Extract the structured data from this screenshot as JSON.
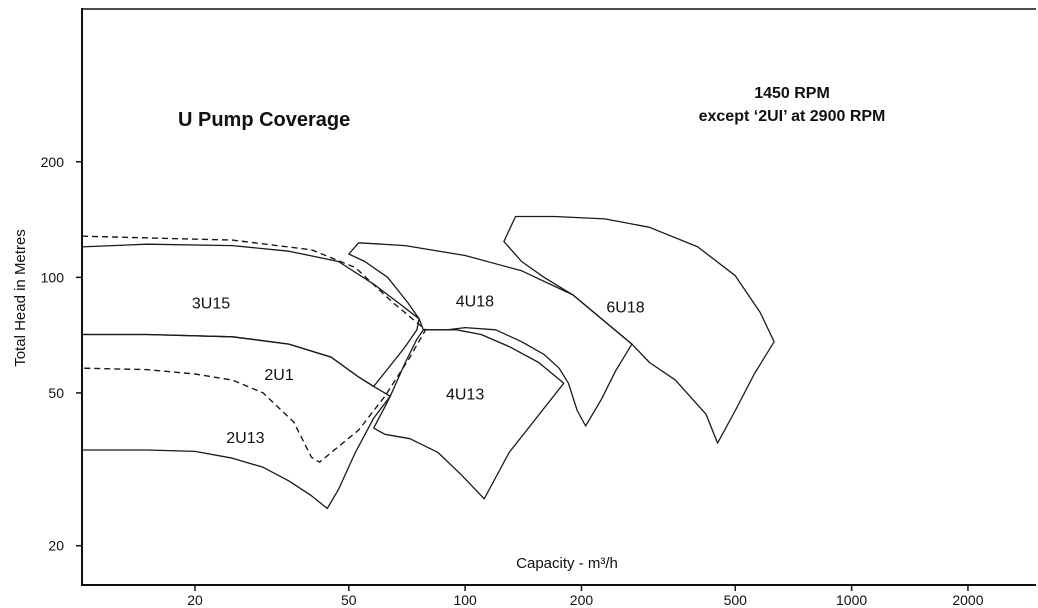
{
  "chart_data": {
    "type": "area",
    "title": "U Pump Coverage",
    "note_line1": "1450 RPM",
    "note_line2": "except ‘2UI’ at 2900 RPM",
    "xlabel": "Capacity - m³/h",
    "ylabel": "Total Head in Metres",
    "x_scale": "log",
    "y_scale": "log",
    "xlim": [
      10.2,
      3000
    ],
    "ylim": [
      15.8,
      500
    ],
    "x_ticks": [
      20,
      50,
      100,
      200,
      500,
      1000,
      2000
    ],
    "x_tick_labels": [
      "20",
      "50",
      "100",
      "200",
      "500",
      "1000",
      "2000"
    ],
    "y_ticks": [
      20,
      50,
      100,
      200
    ],
    "y_tick_labels": [
      "20",
      "50",
      "100",
      "200"
    ],
    "grid": false,
    "series": [
      {
        "name": "3U15",
        "style": "solid",
        "label_at": [
          22,
          83
        ],
        "outline": [
          [
            10.2,
            120
          ],
          [
            15,
            122
          ],
          [
            25,
            121
          ],
          [
            35,
            117
          ],
          [
            47,
            110
          ],
          [
            58,
            96
          ],
          [
            68,
            85
          ],
          [
            76,
            78
          ],
          [
            75,
            73
          ],
          [
            70,
            66
          ],
          [
            65,
            60
          ],
          [
            58,
            52
          ],
          [
            53,
            55
          ],
          [
            45,
            62
          ],
          [
            35,
            67
          ],
          [
            25,
            70
          ],
          [
            15,
            71
          ],
          [
            10.2,
            71
          ]
        ]
      },
      {
        "name": "2U13",
        "style": "solid",
        "label_at": [
          27,
          37
        ],
        "outline": [
          [
            10.2,
            71
          ],
          [
            15,
            71
          ],
          [
            25,
            70
          ],
          [
            35,
            67
          ],
          [
            45,
            62
          ],
          [
            53,
            55
          ],
          [
            58,
            52
          ],
          [
            64,
            49
          ],
          [
            58,
            43
          ],
          [
            52,
            35
          ],
          [
            47,
            28
          ],
          [
            44,
            25
          ],
          [
            40,
            27
          ],
          [
            35,
            29.5
          ],
          [
            30,
            32
          ],
          [
            25,
            33.8
          ],
          [
            20,
            35.2
          ],
          [
            15,
            35.5
          ],
          [
            10.2,
            35.5
          ]
        ]
      },
      {
        "name": "2U1",
        "style": "dashed",
        "label_at": [
          33,
          54
        ],
        "outline": [
          [
            10.2,
            128
          ],
          [
            25,
            125
          ],
          [
            40,
            118
          ],
          [
            52,
            106
          ],
          [
            65,
            86
          ],
          [
            79,
            73
          ],
          [
            72,
            62
          ],
          [
            62,
            49
          ],
          [
            53,
            40
          ],
          [
            42,
            33
          ],
          [
            40,
            34
          ],
          [
            36,
            42
          ],
          [
            30,
            50
          ],
          [
            25,
            54
          ],
          [
            20,
            56
          ],
          [
            15,
            57.5
          ],
          [
            10.2,
            58
          ]
        ]
      },
      {
        "name": "4U13",
        "style": "solid",
        "label_at": [
          100,
          48
        ],
        "outline": [
          [
            78,
            73
          ],
          [
            95,
            73
          ],
          [
            110,
            71
          ],
          [
            130,
            66
          ],
          [
            155,
            60
          ],
          [
            180,
            53
          ],
          [
            150,
            42
          ],
          [
            130,
            35
          ],
          [
            112,
            26.5
          ],
          [
            98,
            30.5
          ],
          [
            85,
            35
          ],
          [
            72,
            38
          ],
          [
            62,
            39
          ],
          [
            58,
            40.5
          ],
          [
            62,
            46
          ],
          [
            64,
            49
          ],
          [
            70,
            60
          ],
          [
            75,
            69
          ]
        ]
      },
      {
        "name": "4U18",
        "style": "solid",
        "label_at": [
          106,
          84
        ],
        "outline": [
          [
            50,
            115
          ],
          [
            53,
            123
          ],
          [
            70,
            121
          ],
          [
            100,
            114
          ],
          [
            140,
            104
          ],
          [
            190,
            90
          ],
          [
            240,
            74
          ],
          [
            270,
            67
          ],
          [
            245,
            57
          ],
          [
            225,
            48
          ],
          [
            205,
            41
          ],
          [
            195,
            45
          ],
          [
            185,
            53
          ],
          [
            175,
            58
          ],
          [
            160,
            63
          ],
          [
            140,
            68
          ],
          [
            120,
            73
          ],
          [
            100,
            74
          ],
          [
            90,
            73
          ],
          [
            78,
            73
          ],
          [
            76,
            78
          ],
          [
            71,
            86
          ],
          [
            63,
            100
          ],
          [
            55,
            110
          ]
        ]
      },
      {
        "name": "6U18",
        "style": "solid",
        "label_at": [
          260,
          81
        ],
        "outline": [
          [
            126,
            124
          ],
          [
            135,
            144
          ],
          [
            170,
            144
          ],
          [
            230,
            142
          ],
          [
            300,
            135
          ],
          [
            400,
            120
          ],
          [
            500,
            101
          ],
          [
            580,
            81
          ],
          [
            630,
            68
          ],
          [
            560,
            56
          ],
          [
            500,
            45
          ],
          [
            450,
            37
          ],
          [
            420,
            44
          ],
          [
            350,
            54
          ],
          [
            300,
            60
          ],
          [
            270,
            67
          ],
          [
            240,
            74
          ],
          [
            190,
            90
          ],
          [
            160,
            100
          ],
          [
            140,
            110
          ]
        ]
      }
    ]
  }
}
